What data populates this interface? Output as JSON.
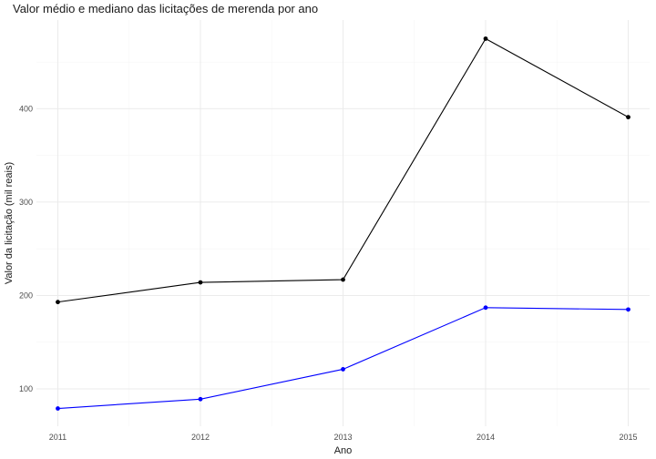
{
  "chart_data": {
    "type": "line",
    "title": "Valor médio e mediano das licitações de merenda por ano",
    "xlabel": "Ano",
    "ylabel": "Valor da licitação (mil reais)",
    "x": [
      2011,
      2012,
      2013,
      2014,
      2015
    ],
    "x_tick_labels": [
      "2011",
      "2012",
      "2013",
      "2014",
      "2015"
    ],
    "y_ticks": [
      100,
      200,
      300,
      400
    ],
    "y_tick_labels": [
      "100",
      "200",
      "300",
      "400"
    ],
    "xlim": [
      2010.85,
      2015.15
    ],
    "ylim": [
      60,
      495
    ],
    "grid": true,
    "series": [
      {
        "color": "#000000",
        "values": [
          193,
          214,
          217,
          475,
          391
        ]
      },
      {
        "color": "#0000ff",
        "values": [
          79,
          89,
          121,
          187,
          185
        ]
      }
    ]
  }
}
